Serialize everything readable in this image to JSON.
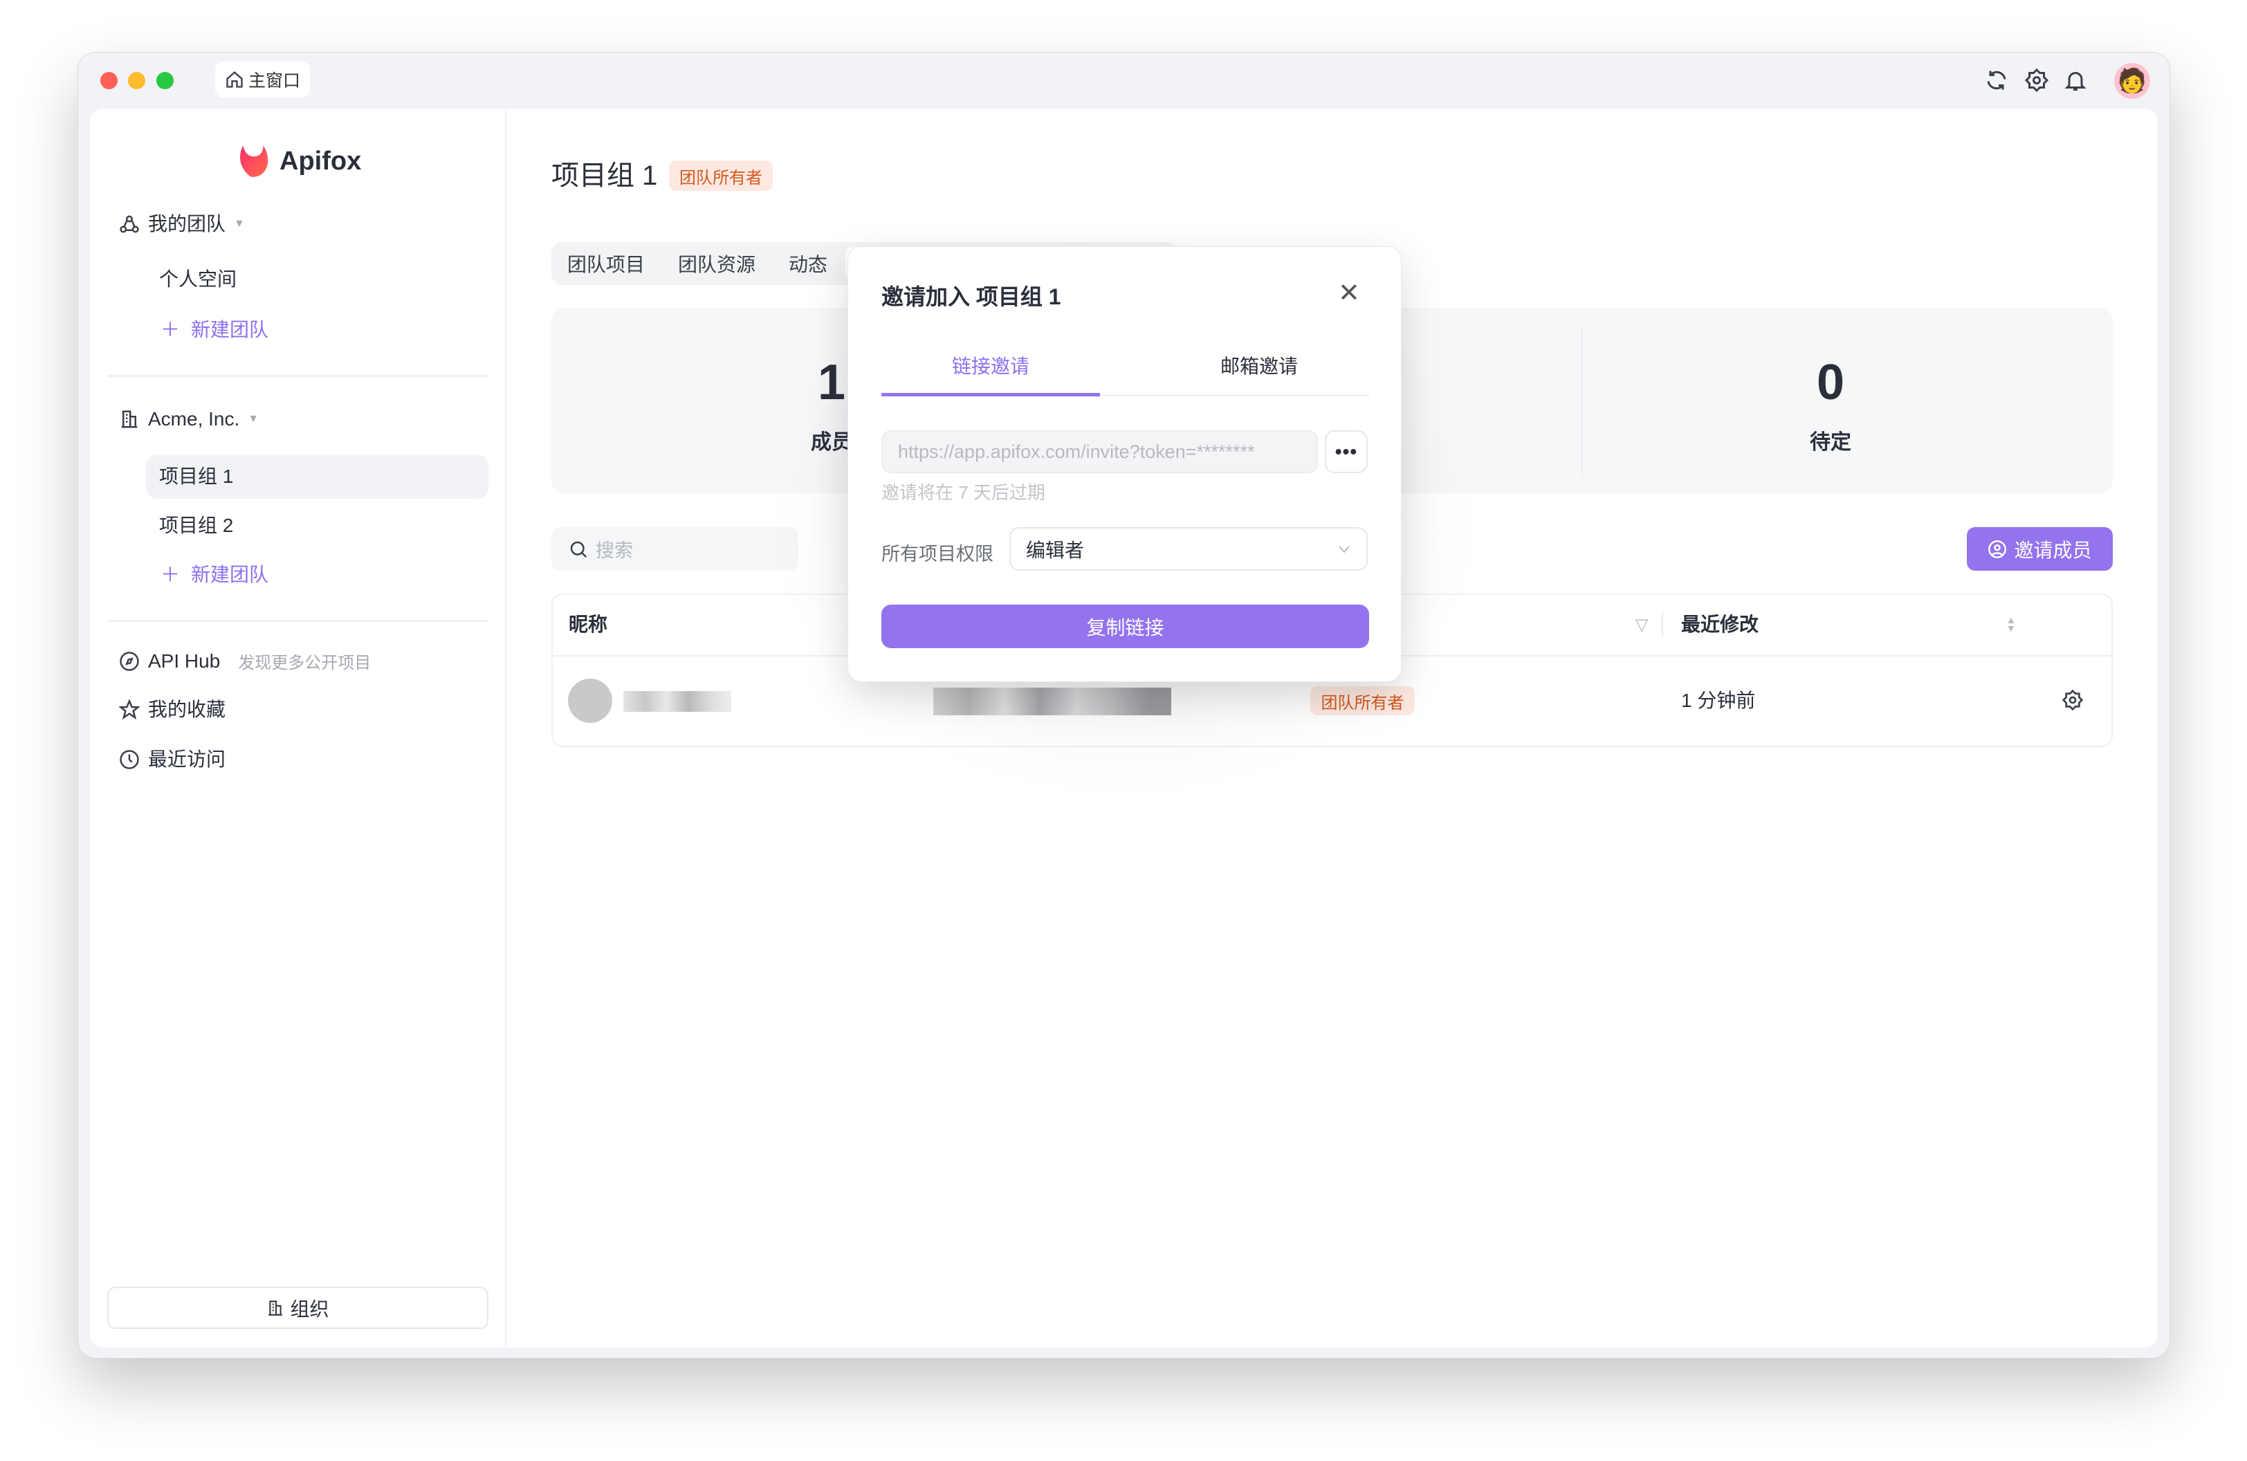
{
  "titlebar": {
    "tab_label": "主窗口"
  },
  "colors": {
    "accent": "#9373EE",
    "owner_badge_bg": "#FDE9E1",
    "owner_badge_text": "#D4591F"
  },
  "sidebar": {
    "logo_text": "Apifox",
    "my_team": "我的团队",
    "personal_space": "个人空间",
    "new_team_1": "新建团队",
    "org_name": "Acme, Inc.",
    "groups": [
      {
        "label": "项目组 1",
        "selected": true
      },
      {
        "label": "项目组 2",
        "selected": false
      }
    ],
    "new_team_2": "新建团队",
    "api_hub": "API Hub",
    "api_hub_hint": "发现更多公开项目",
    "favorites": "我的收藏",
    "recent": "最近访问",
    "org_button": "组织"
  },
  "main": {
    "title": "项目组 1",
    "role_badge": "团队所有者",
    "tabs": [
      "团队项目",
      "团队资源",
      "动态"
    ],
    "stats": [
      {
        "value": "1",
        "label": "成员"
      },
      {
        "value": "0",
        "label": "待定"
      }
    ],
    "search_placeholder": "搜索",
    "invite_button": "邀请成员",
    "table": {
      "columns": {
        "nickname": "昵称",
        "last_modified": "最近修改"
      },
      "rows": [
        {
          "role": "团队所有者",
          "last_modified": "1 分钟前"
        }
      ]
    }
  },
  "modal": {
    "title": "邀请加入 项目组 1",
    "tabs": [
      {
        "label": "链接邀请",
        "active": true
      },
      {
        "label": "邮箱邀请",
        "active": false
      }
    ],
    "invite_link": "https://app.apifox.com/invite?token=********",
    "more_button": "•••",
    "expiry_note": "邀请将在 7 天后过期",
    "permission_label": "所有项目权限",
    "permission_value": "编辑者",
    "copy_button": "复制链接"
  }
}
